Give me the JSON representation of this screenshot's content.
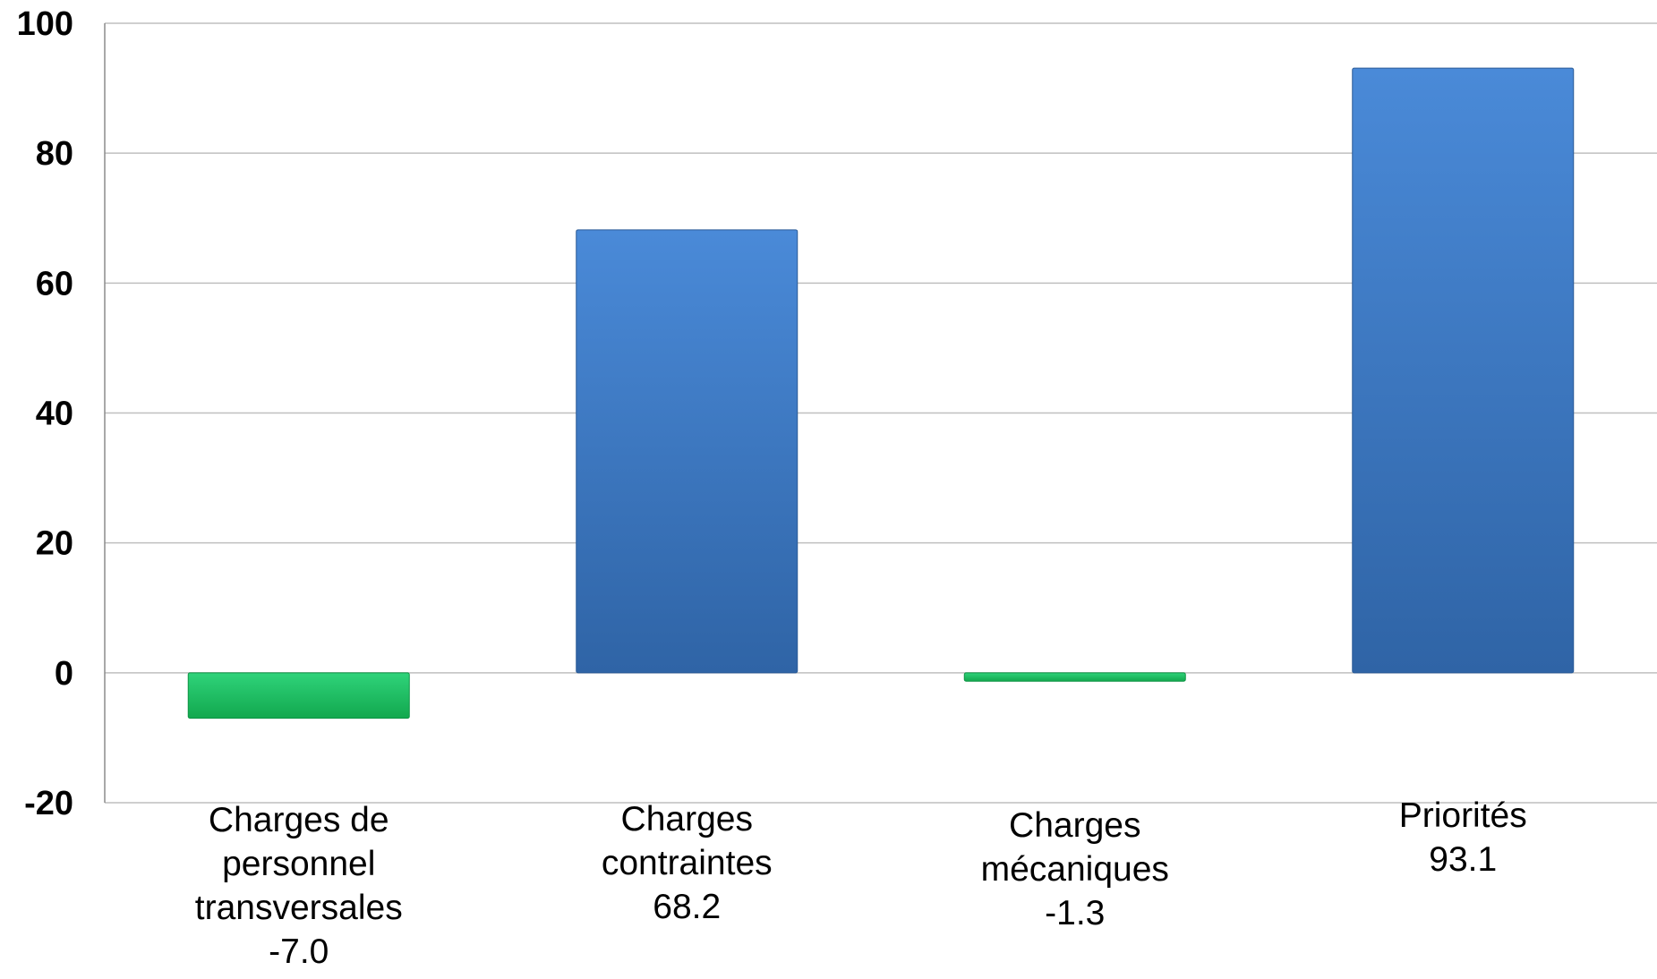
{
  "chart_data": {
    "type": "bar",
    "categories": [
      [
        "Charges de",
        "personnel",
        "transversales"
      ],
      [
        "Charges",
        "contraintes"
      ],
      [
        "Charges",
        "mécaniques"
      ],
      [
        "Priorités"
      ]
    ],
    "value_labels": [
      "-7.0",
      "68.2",
      "-1.3",
      "93.1"
    ],
    "values": [
      -7.0,
      68.2,
      -1.3,
      93.1
    ],
    "ylim": [
      -20,
      100
    ],
    "yticks": [
      100,
      80,
      60,
      40,
      20,
      0,
      -20
    ],
    "grid": true,
    "colors": {
      "positive_top": "#4a8ad8",
      "positive_bottom": "#2f64a6",
      "negative_top": "#2fd37a",
      "negative_bottom": "#12a84e",
      "grid": "#bfbfbf"
    }
  }
}
